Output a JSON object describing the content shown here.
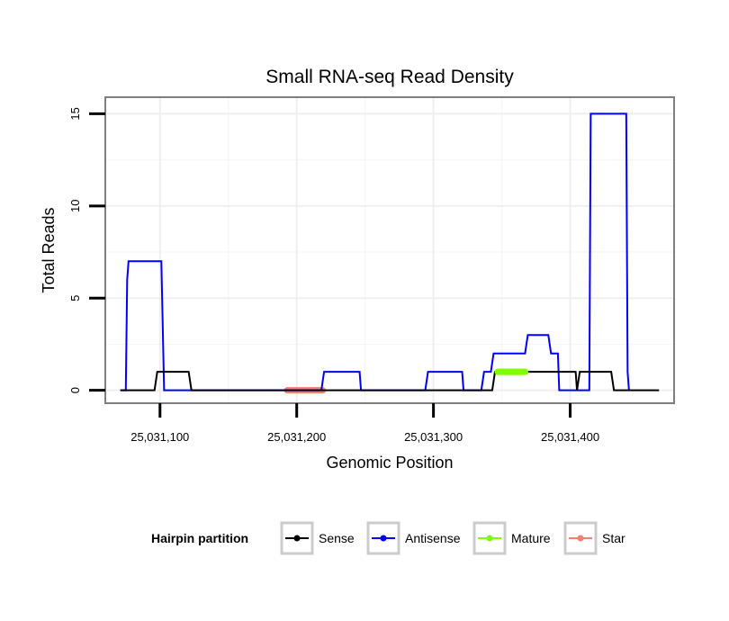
{
  "chart_data": {
    "type": "line",
    "title": "Small RNA-seq Read Density",
    "xlabel": "Genomic Position",
    "ylabel": "Total Reads",
    "xlim": [
      25031060,
      25031476
    ],
    "ylim": [
      -0.7,
      15.9
    ],
    "x_ticks": [
      {
        "value": 25031100,
        "label": "25,031,100"
      },
      {
        "value": 25031200,
        "label": "25,031,200"
      },
      {
        "value": 25031300,
        "label": "25,031,300"
      },
      {
        "value": 25031400,
        "label": "25,031,400"
      }
    ],
    "y_ticks": [
      {
        "value": 0,
        "label": "0"
      },
      {
        "value": 5,
        "label": "5"
      },
      {
        "value": 10,
        "label": "10"
      },
      {
        "value": 15,
        "label": "15"
      }
    ],
    "grid": true,
    "legend": {
      "title": "Hairpin partition",
      "position": "bottom",
      "entries": [
        {
          "label": "Sense",
          "color": "#000000"
        },
        {
          "label": "Antisense",
          "color": "#0000ff"
        },
        {
          "label": "Mature",
          "color": "#7fff00"
        },
        {
          "label": "Star",
          "color": "#f08070"
        }
      ]
    },
    "series": [
      {
        "name": "Antisense",
        "color": "#0000ff",
        "x": [
          25031071,
          25031075,
          25031076,
          25031077,
          25031078,
          25031101,
          25031102,
          25031103,
          25031122,
          25031218,
          25031219,
          25031220,
          25031246,
          25031247,
          25031294,
          25031295,
          25031296,
          25031321,
          25031322,
          25031335,
          25031336,
          25031337,
          25031342,
          25031343,
          25031344,
          25031367,
          25031368,
          25031369,
          25031384,
          25031385,
          25031386,
          25031391,
          25031392,
          25031414,
          25031415,
          25031441,
          25031442,
          25031443
        ],
        "values": [
          0,
          0,
          6,
          7,
          7,
          7,
          3.5,
          0,
          0,
          0,
          0.5,
          1,
          1,
          0,
          0,
          0.5,
          1,
          1,
          0,
          0,
          0.5,
          1,
          1,
          1.5,
          2,
          2,
          2.5,
          3,
          3,
          2.5,
          2,
          2,
          0,
          0,
          15,
          15,
          1,
          0
        ]
      },
      {
        "name": "Sense",
        "color": "#000000",
        "x": [
          25031071,
          25031096,
          25031098,
          25031121,
          25031123,
          25031343,
          25031345,
          25031404,
          25031405,
          25031407,
          25031430,
          25031432,
          25031465
        ],
        "values": [
          0,
          0,
          1,
          1,
          0,
          0,
          1,
          1,
          0,
          1,
          1,
          0,
          0
        ]
      }
    ],
    "segments": [
      {
        "name": "Mature",
        "color": "#7fff00",
        "x_start": 25031347,
        "x_end": 25031367,
        "y": 1
      },
      {
        "name": "Star",
        "color": "#f08070",
        "x_start": 25031193,
        "x_end": 25031219,
        "y": 0
      }
    ]
  }
}
